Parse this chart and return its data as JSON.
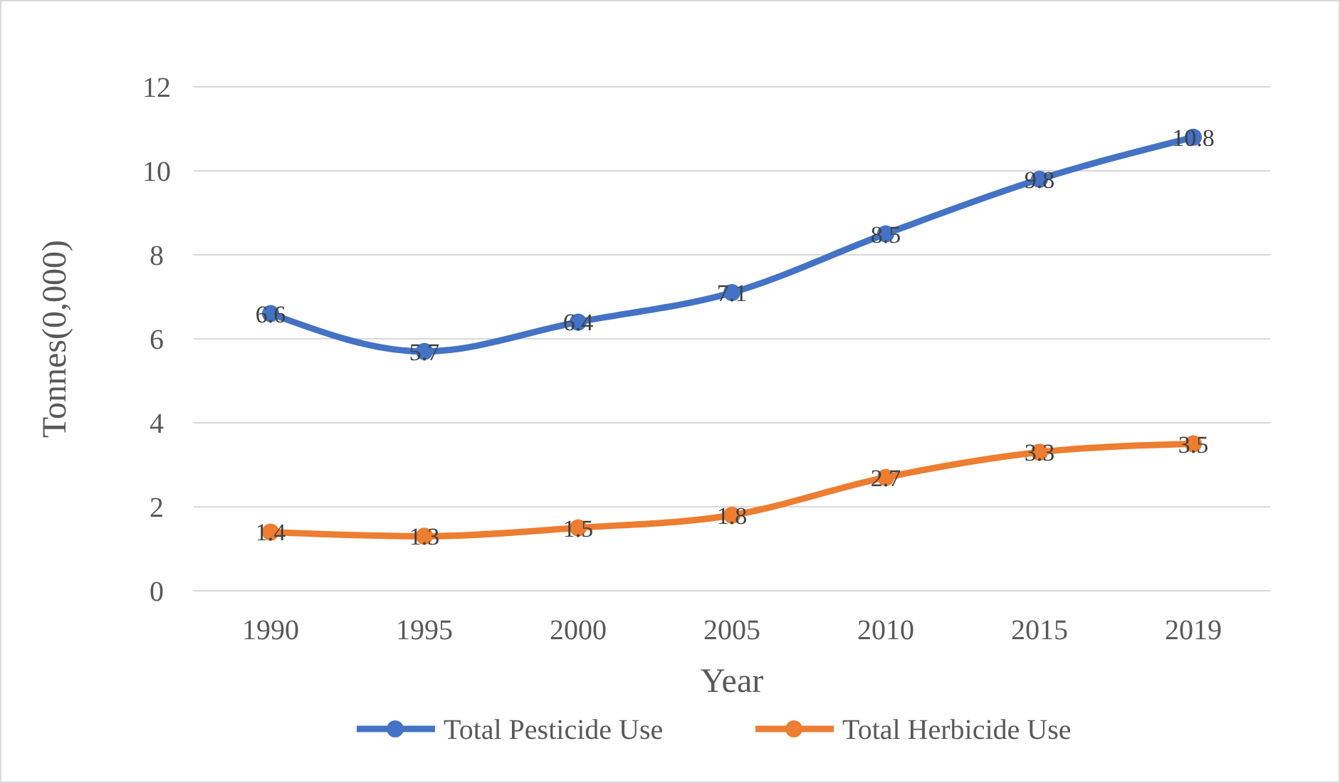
{
  "chart_data": {
    "type": "line",
    "xlabel": "Year",
    "ylabel": "Tonnes(0,000)",
    "categories": [
      "1990",
      "1995",
      "2000",
      "2005",
      "2010",
      "2015",
      "2019"
    ],
    "series": [
      {
        "name": "Total Pesticide Use",
        "color": "#4472c4",
        "values": [
          6.6,
          5.7,
          6.4,
          7.1,
          8.5,
          9.8,
          10.8
        ]
      },
      {
        "name": "Total Herbicide Use",
        "color": "#ed7d31",
        "values": [
          1.4,
          1.3,
          1.5,
          1.8,
          2.7,
          3.3,
          3.5
        ]
      }
    ],
    "ylim": [
      0,
      12
    ],
    "yticks": [
      0,
      2,
      4,
      6,
      8,
      10,
      12
    ],
    "grid": "y",
    "legend": "bottom",
    "marker": "circle",
    "line_style": "solid",
    "data_labels": true
  }
}
